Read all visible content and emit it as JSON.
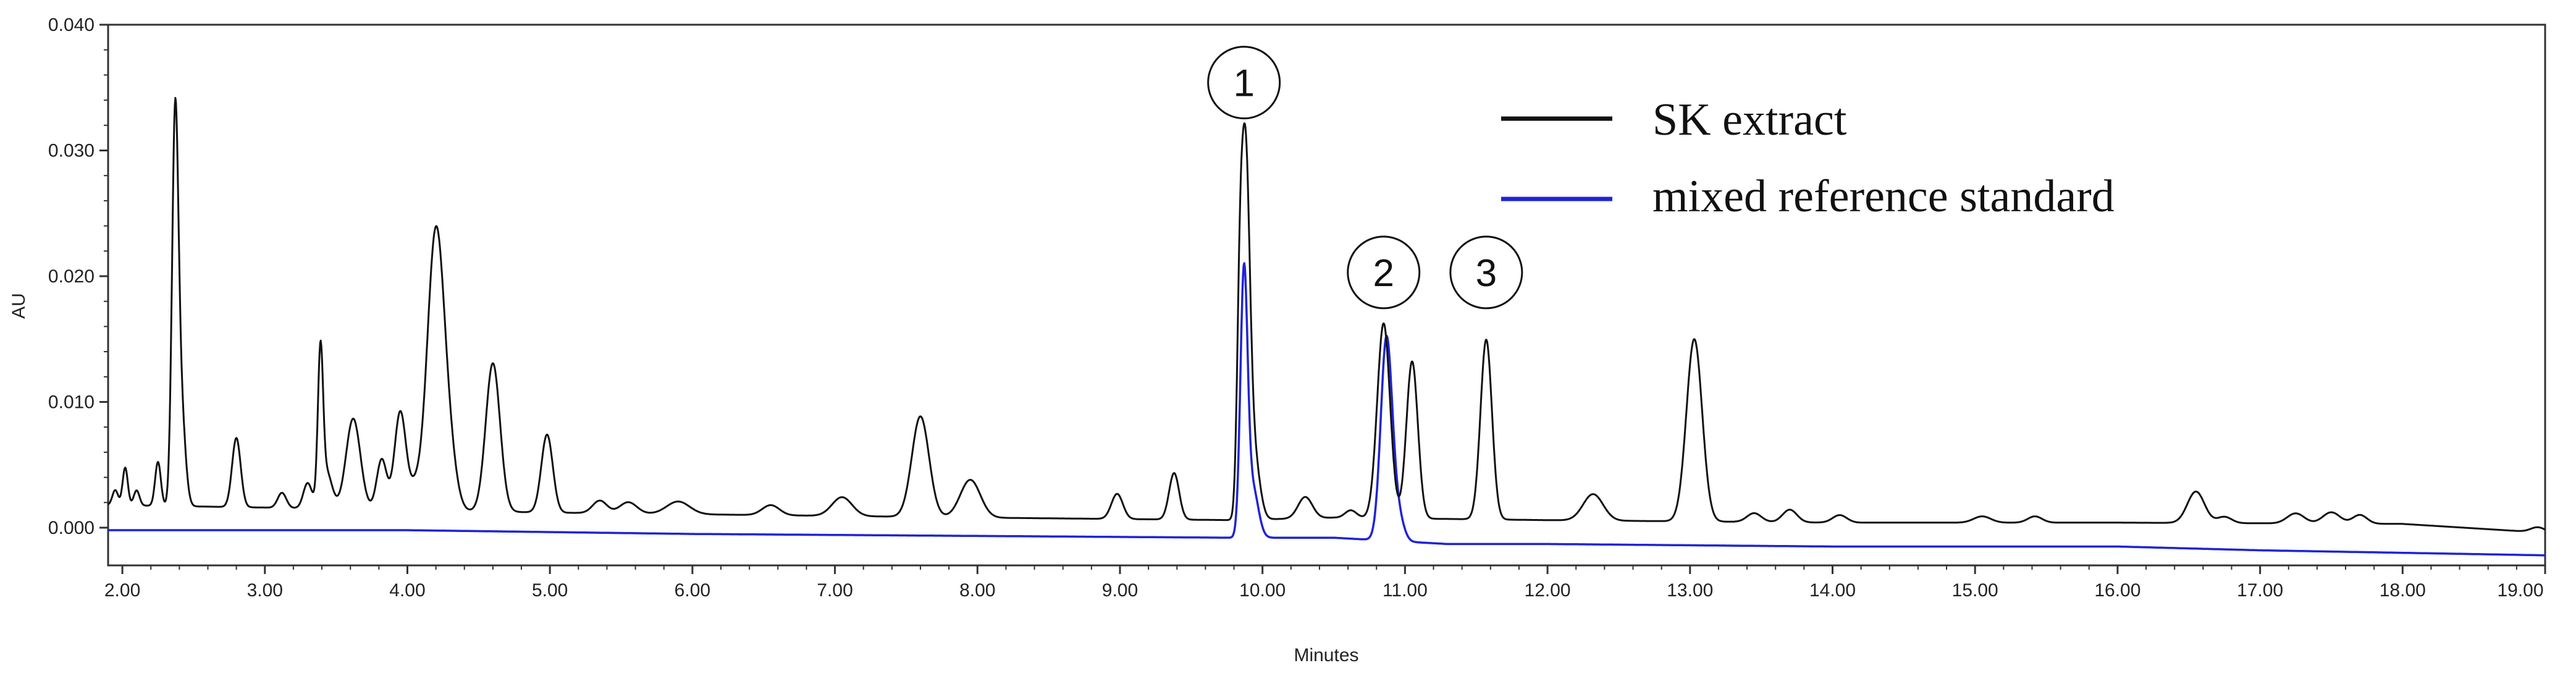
{
  "chart_data": {
    "type": "line",
    "title": "",
    "xlabel": "Minutes",
    "ylabel": "AU",
    "xlim": [
      1.9,
      19.0
    ],
    "ylim": [
      -0.003,
      0.04
    ],
    "x_ticks": [
      "2.00",
      "3.00",
      "4.00",
      "5.00",
      "6.00",
      "7.00",
      "8.00",
      "9.00",
      "10.00",
      "11.00",
      "12.00",
      "13.00",
      "14.00",
      "15.00",
      "16.00",
      "17.00",
      "18.00",
      "19.00"
    ],
    "y_ticks": [
      "0.000",
      "0.010",
      "0.020",
      "0.030",
      "0.040"
    ],
    "grid": false,
    "legend_position": "top-right",
    "series": [
      {
        "name": "SK extract",
        "color": "#111111",
        "baseline": [
          [
            1.9,
            0.0018
          ],
          [
            3.0,
            0.0016
          ],
          [
            5.0,
            0.0012
          ],
          [
            8.0,
            0.0008
          ],
          [
            9.8,
            0.0006
          ],
          [
            10.5,
            0.0008
          ],
          [
            12.0,
            0.0006
          ],
          [
            14.0,
            0.0004
          ],
          [
            16.0,
            0.0004
          ],
          [
            18.0,
            0.0003
          ],
          [
            19.0,
            -0.0004
          ]
        ],
        "peaks": [
          {
            "t": 1.95,
            "h": 0.0012,
            "w": 0.02
          },
          {
            "t": 2.02,
            "h": 0.003,
            "w": 0.018
          },
          {
            "t": 2.1,
            "h": 0.0012,
            "w": 0.02
          },
          {
            "t": 2.25,
            "h": 0.0035,
            "w": 0.02
          },
          {
            "t": 2.37,
            "h": 0.029,
            "w": 0.022
          },
          {
            "t": 2.41,
            "h": 0.008,
            "w": 0.03
          },
          {
            "t": 2.8,
            "h": 0.0055,
            "w": 0.03
          },
          {
            "t": 3.12,
            "h": 0.0012,
            "w": 0.03
          },
          {
            "t": 3.3,
            "h": 0.002,
            "w": 0.03
          },
          {
            "t": 3.39,
            "h": 0.0115,
            "w": 0.018
          },
          {
            "t": 3.43,
            "h": 0.003,
            "w": 0.04
          },
          {
            "t": 3.62,
            "h": 0.0072,
            "w": 0.05
          },
          {
            "t": 3.82,
            "h": 0.004,
            "w": 0.035
          },
          {
            "t": 3.95,
            "h": 0.0078,
            "w": 0.04
          },
          {
            "t": 4.05,
            "h": 0.0015,
            "w": 0.04
          },
          {
            "t": 4.2,
            "h": 0.0222,
            "w": 0.06
          },
          {
            "t": 4.3,
            "h": 0.003,
            "w": 0.05
          },
          {
            "t": 4.6,
            "h": 0.0118,
            "w": 0.05
          },
          {
            "t": 4.98,
            "h": 0.0062,
            "w": 0.04
          },
          {
            "t": 5.35,
            "h": 0.001,
            "w": 0.05
          },
          {
            "t": 5.55,
            "h": 0.0009,
            "w": 0.06
          },
          {
            "t": 5.9,
            "h": 0.001,
            "w": 0.08
          },
          {
            "t": 6.55,
            "h": 0.0008,
            "w": 0.06
          },
          {
            "t": 7.05,
            "h": 0.0015,
            "w": 0.07
          },
          {
            "t": 7.6,
            "h": 0.008,
            "w": 0.06
          },
          {
            "t": 7.95,
            "h": 0.003,
            "w": 0.07
          },
          {
            "t": 8.98,
            "h": 0.002,
            "w": 0.04
          },
          {
            "t": 9.38,
            "h": 0.0037,
            "w": 0.035
          },
          {
            "t": 9.84,
            "h": 0.012,
            "w": 0.02
          },
          {
            "t": 9.88,
            "h": 0.028,
            "w": 0.03
          },
          {
            "t": 9.94,
            "h": 0.005,
            "w": 0.04
          },
          {
            "t": 10.3,
            "h": 0.0017,
            "w": 0.05
          },
          {
            "t": 10.62,
            "h": 0.0006,
            "w": 0.04
          },
          {
            "t": 10.85,
            "h": 0.0155,
            "w": 0.045
          },
          {
            "t": 11.05,
            "h": 0.0125,
            "w": 0.04
          },
          {
            "t": 11.57,
            "h": 0.0143,
            "w": 0.04
          },
          {
            "t": 12.32,
            "h": 0.0021,
            "w": 0.07
          },
          {
            "t": 13.03,
            "h": 0.0145,
            "w": 0.055
          },
          {
            "t": 13.45,
            "h": 0.0007,
            "w": 0.05
          },
          {
            "t": 13.7,
            "h": 0.001,
            "w": 0.05
          },
          {
            "t": 14.05,
            "h": 0.0006,
            "w": 0.05
          },
          {
            "t": 15.05,
            "h": 0.0005,
            "w": 0.06
          },
          {
            "t": 15.42,
            "h": 0.0005,
            "w": 0.05
          },
          {
            "t": 16.55,
            "h": 0.0025,
            "w": 0.06
          },
          {
            "t": 16.75,
            "h": 0.0005,
            "w": 0.05
          },
          {
            "t": 17.25,
            "h": 0.0008,
            "w": 0.06
          },
          {
            "t": 17.5,
            "h": 0.0009,
            "w": 0.06
          },
          {
            "t": 17.7,
            "h": 0.0007,
            "w": 0.05
          },
          {
            "t": 18.95,
            "h": 0.0004,
            "w": 0.05
          }
        ]
      },
      {
        "name": "mixed reference standard",
        "color": "#1f24d6",
        "baseline": [
          [
            1.9,
            -0.0002
          ],
          [
            4.0,
            -0.0002
          ],
          [
            6.0,
            -0.0005
          ],
          [
            9.8,
            -0.0008
          ],
          [
            10.5,
            -0.0008
          ],
          [
            11.3,
            -0.0013
          ],
          [
            12.0,
            -0.0013
          ],
          [
            14.0,
            -0.0015
          ],
          [
            16.0,
            -0.0015
          ],
          [
            17.0,
            -0.0018
          ],
          [
            19.0,
            -0.0022
          ]
        ],
        "peaks": [
          {
            "t": 9.87,
            "h": 0.0205,
            "w": 0.025
          },
          {
            "t": 9.93,
            "h": 0.004,
            "w": 0.04
          },
          {
            "t": 10.87,
            "h": 0.016,
            "w": 0.04
          },
          {
            "t": 10.95,
            "h": 0.002,
            "w": 0.04
          }
        ]
      }
    ],
    "annotations": [
      {
        "label": "1",
        "x": 9.87,
        "y": 0.0354
      },
      {
        "label": "2",
        "x": 10.85,
        "y": 0.0203
      },
      {
        "label": "3",
        "x": 11.57,
        "y": 0.0203
      }
    ]
  }
}
